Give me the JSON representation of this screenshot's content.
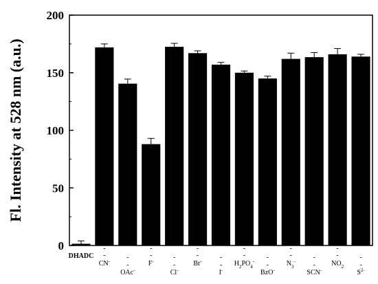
{
  "chart_data": {
    "type": "bar",
    "title": "",
    "xlabel": "",
    "ylabel": "Fl. Intensity at 528 nm (a.u.)",
    "ylim": [
      0,
      200
    ],
    "yticks": [
      0,
      50,
      100,
      150,
      200
    ],
    "grid": false,
    "legend": "none",
    "bar_color": "#000000",
    "categories": [
      "DHADC",
      "CN-",
      "OAc-",
      "F-",
      "Cl-",
      "Br-",
      "I-",
      "H2PO4-",
      "BzO-",
      "N3-",
      "SCN-",
      "NO2",
      "S2-"
    ],
    "category_labels": [
      {
        "base": "DHADC",
        "sub": "",
        "sup": "",
        "dash": false,
        "bold": true
      },
      {
        "base": "CN",
        "sub": "",
        "sup": "-",
        "dash": true,
        "bold": false
      },
      {
        "base": "OAc",
        "sub": "",
        "sup": "-",
        "dash": true,
        "bold": false
      },
      {
        "base": "F",
        "sub": "",
        "sup": "-",
        "dash": true,
        "bold": false
      },
      {
        "base": "Cl",
        "sub": "",
        "sup": "-",
        "dash": true,
        "bold": false
      },
      {
        "base": "Br",
        "sub": "",
        "sup": "-",
        "dash": true,
        "bold": false
      },
      {
        "base": "I",
        "sub": "",
        "sup": "-",
        "dash": true,
        "bold": false
      },
      {
        "base": "H2PO4",
        "sub": "",
        "sup": "-",
        "dash": true,
        "bold": false,
        "rich": [
          [
            "H",
            ""
          ],
          [
            "2",
            "sub"
          ],
          [
            "PO",
            ""
          ],
          [
            "4",
            "sub"
          ],
          [
            "-",
            "sup"
          ]
        ]
      },
      {
        "base": "BzO",
        "sub": "",
        "sup": "-",
        "dash": true,
        "bold": false
      },
      {
        "base": "N",
        "sub": "3",
        "sup": "-",
        "dash": true,
        "bold": false
      },
      {
        "base": "SCN",
        "sub": "",
        "sup": "-",
        "dash": true,
        "bold": false
      },
      {
        "base": "NO",
        "sub": "2",
        "sup": "",
        "dash": true,
        "bold": false
      },
      {
        "base": "S",
        "sub": "",
        "sup": "2-",
        "dash": true,
        "bold": false
      }
    ],
    "values": [
      1.5,
      172,
      140.5,
      88,
      172.5,
      167,
      157,
      150,
      145,
      162,
      163.5,
      166,
      164
    ],
    "errors": [
      2.5,
      3,
      4,
      5,
      3,
      2,
      2,
      1.5,
      2,
      5,
      4,
      5,
      2
    ]
  }
}
